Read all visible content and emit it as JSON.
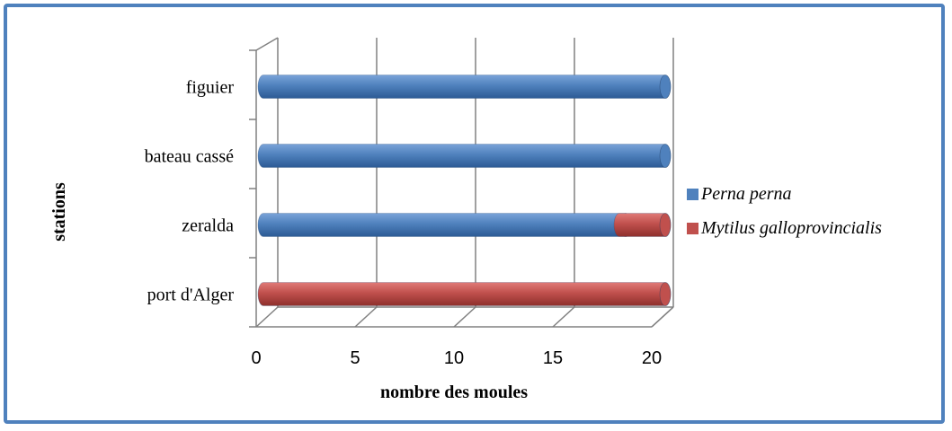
{
  "chart_data": {
    "type": "bar",
    "orientation": "horizontal",
    "stacked": true,
    "categories": [
      "port d'Alger",
      "zeralda",
      "bateau cassé",
      "figuier"
    ],
    "series": [
      {
        "name": "Perna perna",
        "values": [
          0,
          18,
          20,
          20
        ],
        "color": "#4f81bd"
      },
      {
        "name": "Mytilus galloprovincialis",
        "values": [
          20,
          2,
          0,
          0
        ],
        "color": "#c0504d"
      }
    ],
    "xlabel": "nombre des moules",
    "ylabel": "stations",
    "xlim": [
      0,
      20
    ],
    "xticks": [
      "0",
      "5",
      "10",
      "15",
      "20"
    ],
    "grid": "vertical",
    "legend_position": "right",
    "frame_color": "#4f81bd"
  }
}
